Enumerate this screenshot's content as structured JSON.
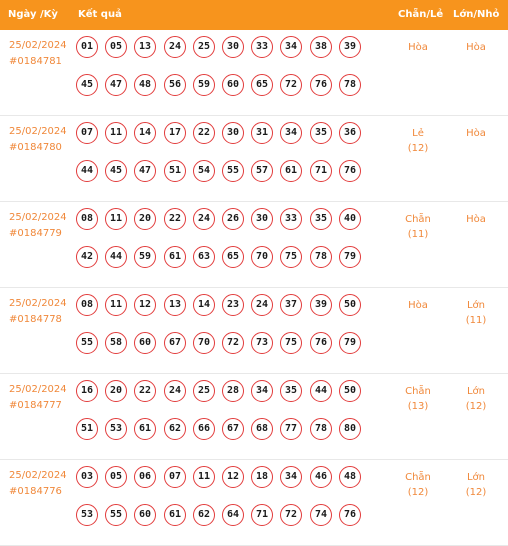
{
  "header": {
    "date": "Ngày /Kỳ",
    "result": "Kết quả",
    "even_odd": "Chẵn/Lẻ",
    "big_small": "Lớn/Nhỏ"
  },
  "rows": [
    {
      "date": "25/02/2024",
      "draw": "#0184781",
      "numbers": [
        "01",
        "05",
        "13",
        "24",
        "25",
        "30",
        "33",
        "34",
        "38",
        "39",
        "45",
        "47",
        "48",
        "56",
        "59",
        "60",
        "65",
        "72",
        "76",
        "78"
      ],
      "even_odd": "Hòa",
      "even_odd_count": "",
      "big_small": "Hòa",
      "big_small_count": ""
    },
    {
      "date": "25/02/2024",
      "draw": "#0184780",
      "numbers": [
        "07",
        "11",
        "14",
        "17",
        "22",
        "30",
        "31",
        "34",
        "35",
        "36",
        "44",
        "45",
        "47",
        "51",
        "54",
        "55",
        "57",
        "61",
        "71",
        "76"
      ],
      "even_odd": "Lẻ",
      "even_odd_count": "(12)",
      "big_small": "Hòa",
      "big_small_count": ""
    },
    {
      "date": "25/02/2024",
      "draw": "#0184779",
      "numbers": [
        "08",
        "11",
        "20",
        "22",
        "24",
        "26",
        "30",
        "33",
        "35",
        "40",
        "42",
        "44",
        "59",
        "61",
        "63",
        "65",
        "70",
        "75",
        "78",
        "79"
      ],
      "even_odd": "Chẵn",
      "even_odd_count": "(11)",
      "big_small": "Hòa",
      "big_small_count": ""
    },
    {
      "date": "25/02/2024",
      "draw": "#0184778",
      "numbers": [
        "08",
        "11",
        "12",
        "13",
        "14",
        "23",
        "24",
        "37",
        "39",
        "50",
        "55",
        "58",
        "60",
        "67",
        "70",
        "72",
        "73",
        "75",
        "76",
        "79"
      ],
      "even_odd": "Hòa",
      "even_odd_count": "",
      "big_small": "Lớn",
      "big_small_count": "(11)"
    },
    {
      "date": "25/02/2024",
      "draw": "#0184777",
      "numbers": [
        "16",
        "20",
        "22",
        "24",
        "25",
        "28",
        "34",
        "35",
        "44",
        "50",
        "51",
        "53",
        "61",
        "62",
        "66",
        "67",
        "68",
        "77",
        "78",
        "80"
      ],
      "even_odd": "Chẵn",
      "even_odd_count": "(13)",
      "big_small": "Lớn",
      "big_small_count": "(12)"
    },
    {
      "date": "25/02/2024",
      "draw": "#0184776",
      "numbers": [
        "03",
        "05",
        "06",
        "07",
        "11",
        "12",
        "18",
        "34",
        "46",
        "48",
        "53",
        "55",
        "60",
        "61",
        "62",
        "64",
        "71",
        "72",
        "74",
        "76"
      ],
      "even_odd": "Chẵn",
      "even_odd_count": "(12)",
      "big_small": "Lớn",
      "big_small_count": "(12)"
    }
  ]
}
